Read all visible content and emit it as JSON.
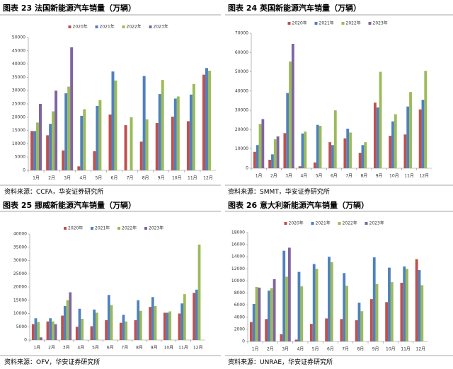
{
  "chart_data": [
    {
      "type": "bar",
      "title": "图表 23 法国新能源汽车销量（万辆）",
      "source": "资料来源：CCFA，华安证券研究所",
      "categories": [
        "1月",
        "2月",
        "3月",
        "4月",
        "5月",
        "6月",
        "7月",
        "8月",
        "9月",
        "10月",
        "11月",
        "12月"
      ],
      "series": [
        {
          "name": "2020年",
          "color": "#c0504d",
          "values": [
            14800,
            13200,
            7500,
            1500,
            7200,
            21000,
            17000,
            10800,
            17800,
            20200,
            18500,
            36000
          ]
        },
        {
          "name": "2021年",
          "color": "#4f81bd",
          "values": [
            14800,
            17500,
            29000,
            20500,
            24200,
            37200,
            null,
            35500,
            28700,
            27000,
            28500,
            38500
          ]
        },
        {
          "name": "2022年",
          "color": "#9bbb59",
          "values": [
            18000,
            22200,
            31500,
            23000,
            26500,
            33800,
            20000,
            19200,
            34000,
            27800,
            32500,
            37500
          ]
        },
        {
          "name": "2023年",
          "color": "#8064a2",
          "values": [
            25000,
            30000,
            46300,
            null,
            null,
            null,
            null,
            null,
            null,
            null,
            null,
            null
          ]
        }
      ],
      "ylim": [
        0,
        50000
      ],
      "yticks": [
        0,
        5000,
        10000,
        15000,
        20000,
        25000,
        30000,
        35000,
        40000,
        45000,
        50000
      ],
      "legend": "top"
    },
    {
      "type": "bar",
      "title": "图表 24 英国新能源汽车销量（万辆）",
      "source": "资料来源：SMMT，华安证券研究所",
      "categories": [
        "1月",
        "2月",
        "3月",
        "4月",
        "5月",
        "6月",
        "7月",
        "8月",
        "9月",
        "10月",
        "11月",
        "12月"
      ],
      "series": [
        {
          "name": "2020年",
          "color": "#c0504d",
          "values": [
            8500,
            4400,
            18200,
            1000,
            3000,
            13500,
            15500,
            8000,
            34000,
            16800,
            17500,
            30500
          ]
        },
        {
          "name": "2021年",
          "color": "#4f81bd",
          "values": [
            12000,
            7200,
            39000,
            18000,
            22500,
            12000,
            20500,
            12000,
            31500,
            24300,
            32000,
            35500
          ]
        },
        {
          "name": "2022年",
          "color": "#9bbb59",
          "values": [
            23000,
            15000,
            55300,
            19000,
            22000,
            30000,
            18500,
            13500,
            50000,
            28000,
            39500,
            50500
          ]
        },
        {
          "name": "2023年",
          "color": "#8064a2",
          "values": [
            25500,
            16500,
            64500,
            null,
            null,
            null,
            null,
            null,
            null,
            null,
            null,
            null
          ]
        }
      ],
      "ylim": [
        0,
        70000
      ],
      "yticks": [
        0,
        10000,
        20000,
        30000,
        40000,
        50000,
        60000,
        70000
      ],
      "legend": "top"
    },
    {
      "type": "bar",
      "title": "图表 25 挪威新能源汽车销量（万辆）",
      "source": "资料来源：OFV，华安证券研究所",
      "categories": [
        "1月",
        "2月",
        "3月",
        "4月",
        "5月",
        "6月",
        "7月",
        "8月",
        "9月",
        "10月",
        "11月",
        "12月"
      ],
      "series": [
        {
          "name": "2020年",
          "color": "#c0504d",
          "values": [
            6000,
            7000,
            9200,
            5000,
            5200,
            7500,
            6500,
            7500,
            12500,
            10300,
            10000,
            17800
          ]
        },
        {
          "name": "2021年",
          "color": "#4f81bd",
          "values": [
            8200,
            8200,
            12800,
            11800,
            11500,
            17000,
            9500,
            15000,
            16200,
            10300,
            13800,
            19000
          ]
        },
        {
          "name": "2022年",
          "color": "#9bbb59",
          "values": [
            6800,
            7000,
            15000,
            8000,
            10300,
            13200,
            7000,
            11000,
            12800,
            10800,
            17300,
            36000
          ]
        },
        {
          "name": "2023年",
          "color": "#8064a2",
          "values": [
            1000,
            6000,
            18000,
            null,
            null,
            null,
            null,
            null,
            null,
            null,
            null,
            null
          ]
        }
      ],
      "ylim": [
        0,
        40000
      ],
      "yticks": [
        0,
        5000,
        10000,
        15000,
        20000,
        25000,
        30000,
        35000,
        40000
      ],
      "legend": "top"
    },
    {
      "type": "bar",
      "title": "图表 26 意大利新能源汽车销量（万辆）",
      "source": "资料来源：UNRAE，华安证券研究所",
      "categories": [
        "1月",
        "2月",
        "3月",
        "4月",
        "5月",
        "6月",
        "7月",
        "8月",
        "9月",
        "10月",
        "11月",
        "12月"
      ],
      "series": [
        {
          "name": "2020年",
          "color": "#c0504d",
          "values": [
            3200,
            3700,
            1200,
            300,
            2900,
            3800,
            3700,
            3500,
            7000,
            6500,
            9700,
            13600
          ]
        },
        {
          "name": "2021年",
          "color": "#4f81bd",
          "values": [
            6200,
            8400,
            15000,
            11500,
            12800,
            14000,
            11300,
            6400,
            13900,
            12200,
            12400,
            11800
          ]
        },
        {
          "name": "2022年",
          "color": "#9bbb59",
          "values": [
            9000,
            8800,
            10700,
            9100,
            12000,
            13100,
            9200,
            5000,
            9500,
            9800,
            12000,
            9300
          ]
        },
        {
          "name": "2023年",
          "color": "#8064a2",
          "values": [
            8900,
            10300,
            15500,
            null,
            null,
            null,
            null,
            null,
            null,
            null,
            null,
            null
          ]
        }
      ],
      "ylim": [
        0,
        18000
      ],
      "yticks": [
        0,
        2000,
        4000,
        6000,
        8000,
        10000,
        12000,
        14000,
        16000,
        18000
      ],
      "legend": "top"
    }
  ]
}
